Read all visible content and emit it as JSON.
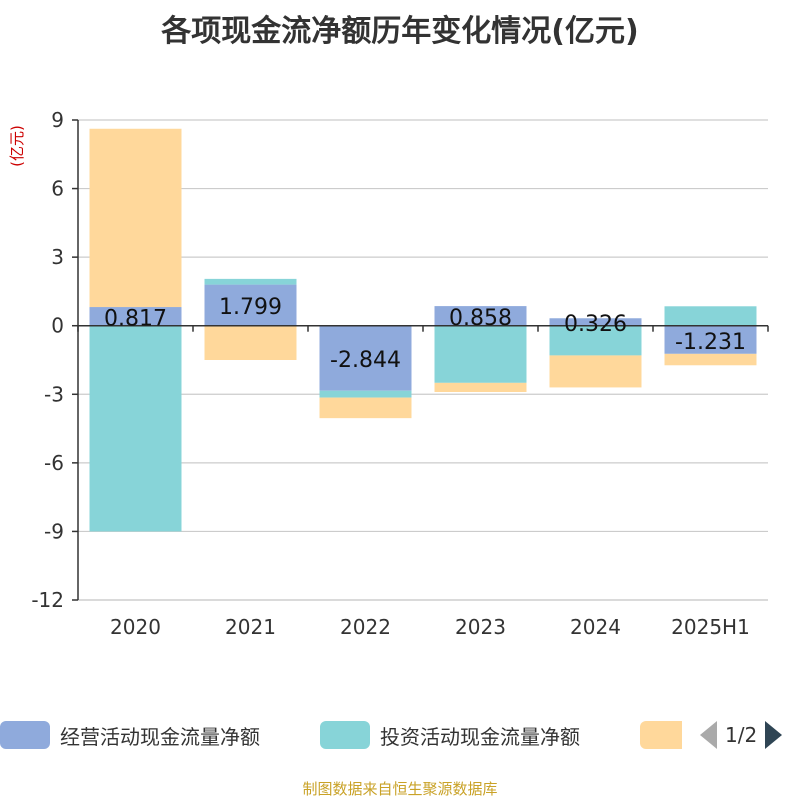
{
  "chart_data": {
    "type": "bar",
    "title": "各项现金流净额历年变化情况(亿元)",
    "ylabel": "(亿元)",
    "ylim": [
      -12,
      9
    ],
    "yticks": [
      9,
      6,
      3,
      0,
      -3,
      -6,
      -9,
      -12
    ],
    "categories": [
      "2020",
      "2021",
      "2022",
      "2023",
      "2024",
      "2025H1"
    ],
    "stacked": true,
    "grid": true,
    "legend_position": "bottom",
    "series": [
      {
        "name": "经营活动现金流量净额",
        "color": "#8faadc",
        "values": [
          0.817,
          1.799,
          -2.844,
          0.858,
          0.326,
          -1.231
        ]
      },
      {
        "name": "投资活动现金流量净额",
        "color": "#87d4d8",
        "values": [
          -9.0,
          0.25,
          -0.3,
          -2.5,
          -1.3,
          0.85
        ]
      },
      {
        "name": "",
        "color": "#ffd89b",
        "values": [
          7.8,
          -1.5,
          -0.9,
          -0.4,
          -1.4,
          -0.5
        ]
      }
    ],
    "data_labels": [
      "0.817",
      "1.799",
      "-2.844",
      "0.858",
      "0.326",
      "-1.231"
    ]
  },
  "legend": {
    "page_text": "1/2"
  },
  "source": "制图数据来自恒生聚源数据库"
}
